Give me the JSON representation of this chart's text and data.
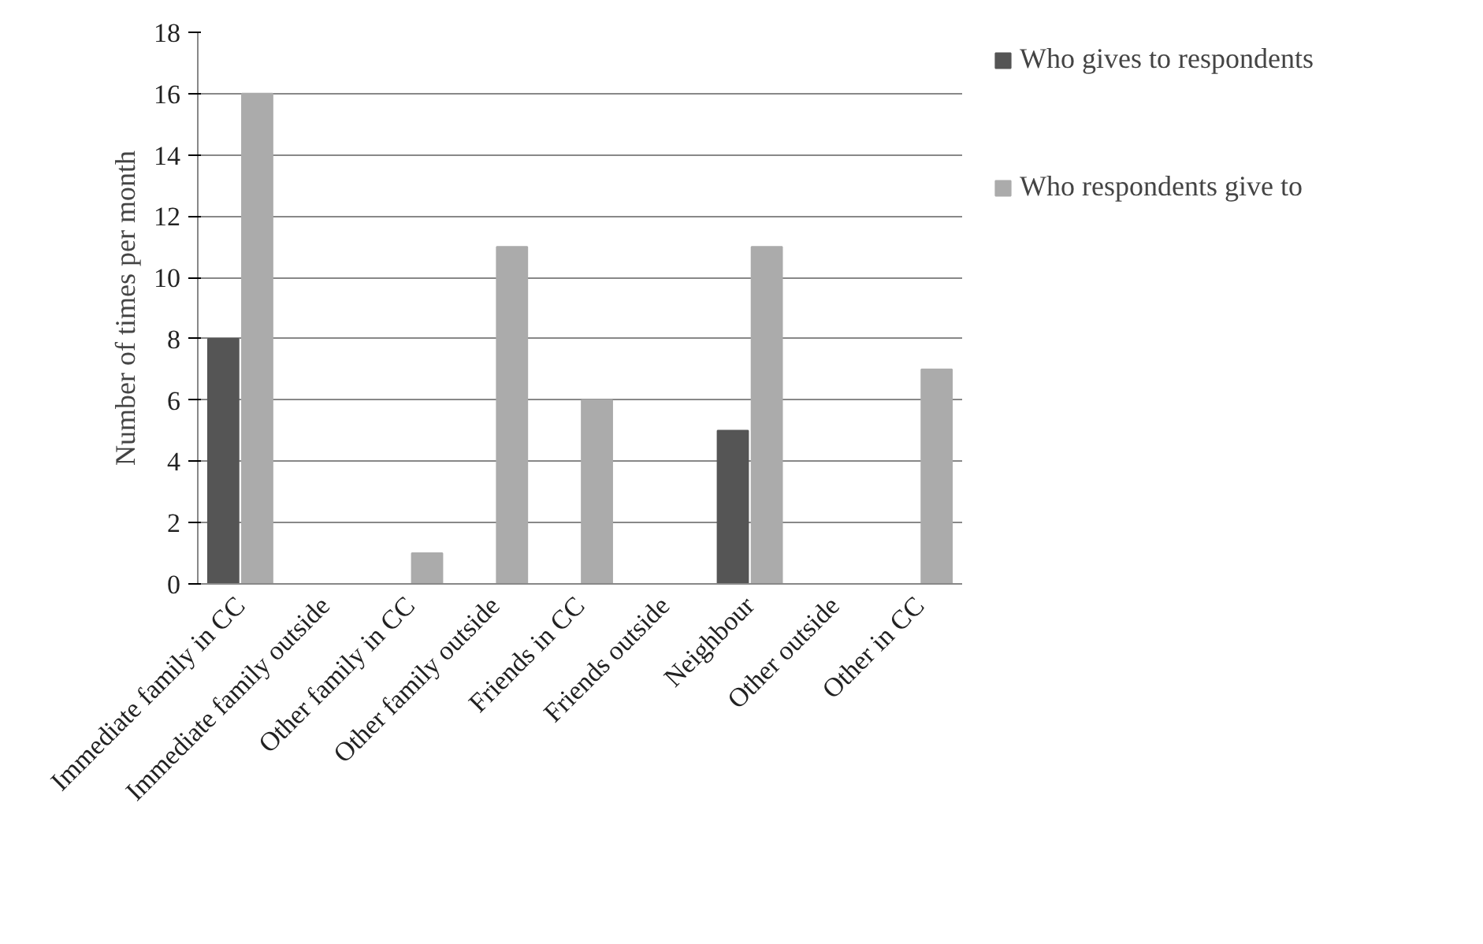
{
  "chart_data": {
    "type": "bar",
    "ylabel": "Number of times per month",
    "categories": [
      "Immediate family in CC",
      "Immediate family outside",
      "Other family in CC",
      "Other family outside",
      "Friends in CC",
      "Friends outside",
      "Neighbour",
      "Other outside",
      "Other in CC"
    ],
    "series": [
      {
        "name": "Who gives to respondents",
        "color": "#555555",
        "values": [
          8,
          0,
          0,
          0,
          0,
          0,
          5,
          0,
          0
        ]
      },
      {
        "name": "Who respondents give to",
        "color": "#ababab",
        "values": [
          16,
          0,
          1,
          11,
          6,
          0,
          11,
          0,
          7
        ]
      }
    ],
    "ylim": [
      0,
      18
    ],
    "yticks": [
      0,
      2,
      4,
      6,
      8,
      10,
      12,
      14,
      16,
      18
    ],
    "grid": "y",
    "legend": "right"
  }
}
